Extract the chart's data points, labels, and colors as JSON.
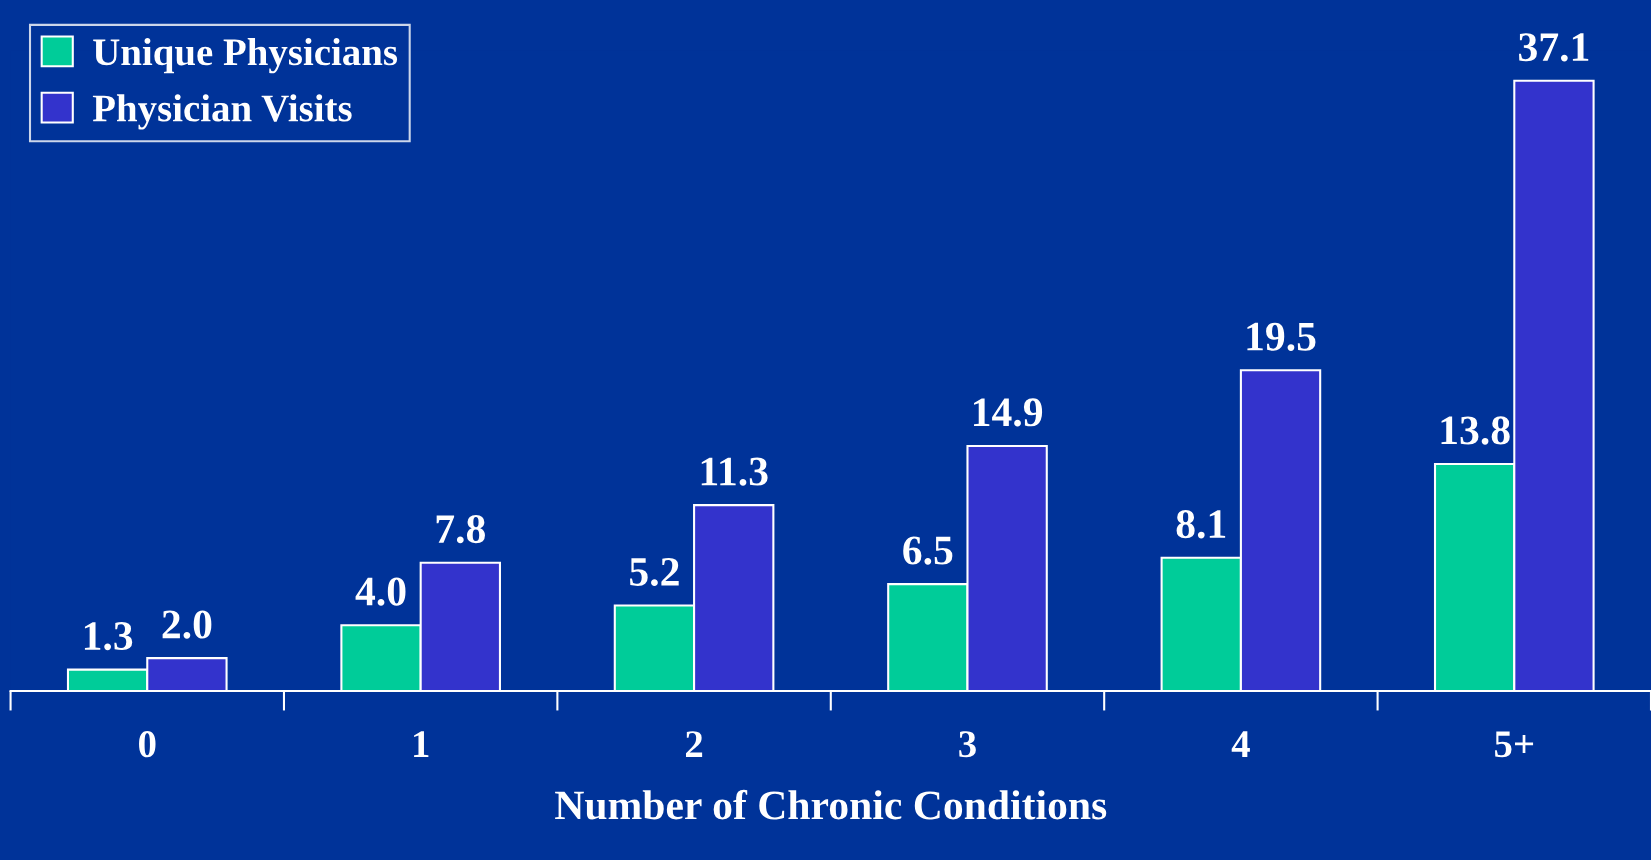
{
  "chart_data": {
    "type": "bar",
    "xlabel": "Number of Chronic Conditions",
    "categories": [
      "0",
      "1",
      "2",
      "3",
      "4",
      "5+"
    ],
    "series": [
      {
        "name": "Unique Physicians",
        "color": "#00cc99",
        "values": [
          1.3,
          4.0,
          5.2,
          6.5,
          8.1,
          13.8
        ],
        "value_labels": [
          "1.3",
          "4.0",
          "5.2",
          "6.5",
          "8.1",
          "13.8"
        ]
      },
      {
        "name": "Physician Visits",
        "color": "#3333cc",
        "values": [
          2.0,
          7.8,
          11.3,
          14.9,
          19.5,
          37.1
        ],
        "value_labels": [
          "2.0",
          "7.8",
          "11.3",
          "14.9",
          "19.5",
          "37.1"
        ]
      }
    ],
    "legend": "top left",
    "grid": false
  }
}
